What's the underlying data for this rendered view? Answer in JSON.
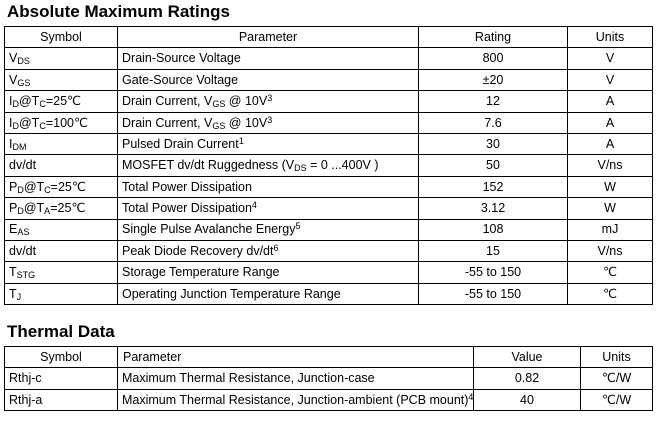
{
  "abs_max": {
    "title": "Absolute Maximum Ratings",
    "headers": [
      "Symbol",
      "Parameter",
      "Rating",
      "Units"
    ],
    "rows": [
      [
        "V~DS~",
        "Drain-Source Voltage",
        "800",
        "V"
      ],
      [
        "V~GS~",
        "Gate-Source Voltage",
        "±20",
        "V"
      ],
      [
        "I~D~@T~C~=25℃",
        "Drain Current, V~GS~ @ 10V^3^",
        "12",
        "A"
      ],
      [
        "I~D~@T~C~=100℃",
        "Drain Current, V~GS~ @ 10V^3^",
        "7.6",
        "A"
      ],
      [
        "I~DM~",
        "Pulsed Drain Current^1^",
        "30",
        "A"
      ],
      [
        "dv/dt",
        "MOSFET dv/dt Ruggedness (V~DS~ = 0 ...400V )",
        "50",
        "V/ns"
      ],
      [
        "P~D~@T~C~=25℃",
        "Total Power Dissipation",
        "152",
        "W"
      ],
      [
        "P~D~@T~A~=25℃",
        "Total Power Dissipation^4^",
        "3.12",
        "W"
      ],
      [
        "E~AS~",
        "Single Pulse Avalanche Energy^5^",
        "108",
        "mJ"
      ],
      [
        "dv/dt",
        "Peak Diode Recovery dv/dt^6^",
        "15",
        "V/ns"
      ],
      [
        "T~STG~",
        "Storage Temperature Range",
        "-55 to 150",
        "℃"
      ],
      [
        "T~J~",
        "Operating Junction Temperature Range",
        "-55 to 150",
        "℃"
      ]
    ]
  },
  "thermal": {
    "title": "Thermal Data",
    "headers": [
      "Symbol",
      "Parameter",
      "Value",
      "Units"
    ],
    "rows": [
      [
        "Rthj-c",
        "Maximum Thermal Resistance, Junction-case",
        "0.82",
        "℃/W"
      ],
      [
        "Rthj-a",
        {
          "t": "Maximum Thermal Resistance, Junction-ambient (PCB mount)^4^",
          "small": true
        },
        "40",
        "℃/W"
      ]
    ]
  },
  "colors": {
    "background": "#ffffff",
    "text": "#000000",
    "border": "#000000"
  }
}
